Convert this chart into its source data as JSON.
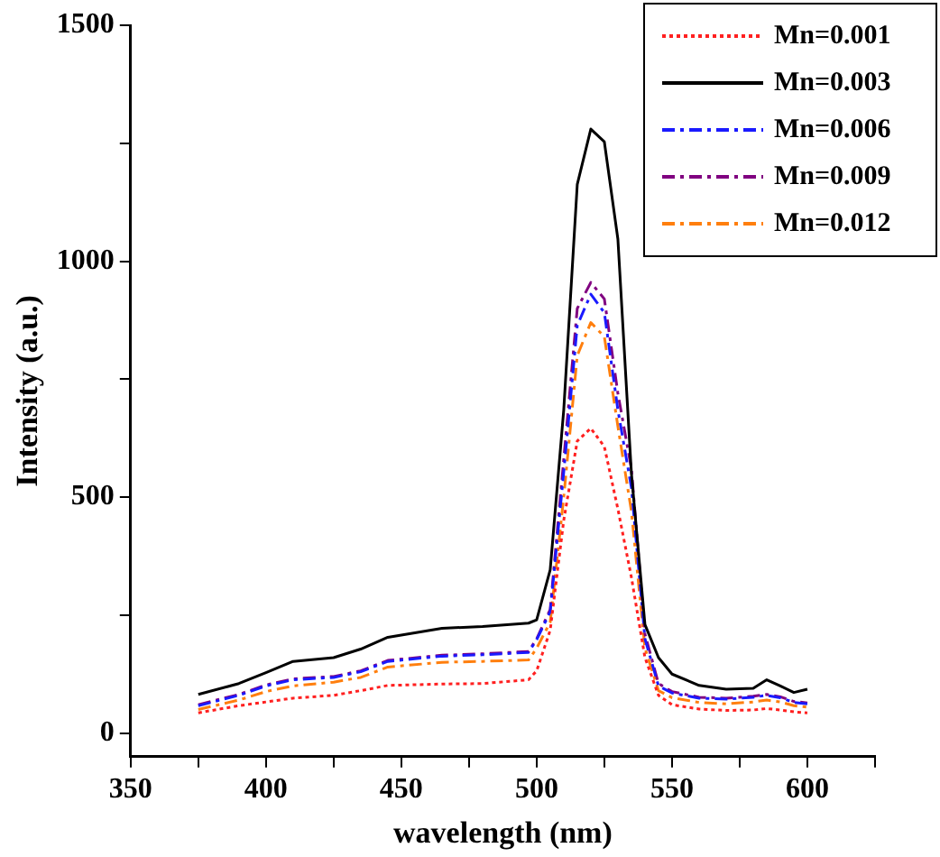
{
  "chart_data": {
    "type": "line",
    "xlabel": "wavelength (nm)",
    "ylabel": "Intensity (a.u.)",
    "x": [
      375,
      390,
      400,
      410,
      425,
      435,
      445,
      465,
      480,
      497,
      500,
      505,
      510,
      515,
      520,
      525,
      530,
      535,
      540,
      545,
      550,
      560,
      570,
      580,
      585,
      590,
      595,
      600
    ],
    "series": [
      {
        "name": "Mn=0.001",
        "color": "#ff2020",
        "line_style": "dotted",
        "values": [
          43,
          58,
          66,
          74,
          80,
          90,
          101,
          104,
          105,
          113,
          132,
          218,
          451,
          619,
          646,
          607,
          475,
          330,
          160,
          80,
          60,
          51,
          48,
          49,
          52,
          49,
          45,
          43
        ]
      },
      {
        "name": "Mn=0.003",
        "color": "#000000",
        "line_style": "solid",
        "values": [
          82,
          105,
          128,
          152,
          160,
          178,
          203,
          222,
          226,
          233,
          240,
          346,
          685,
          1163,
          1280,
          1253,
          1047,
          550,
          230,
          160,
          125,
          101,
          93,
          95,
          113,
          100,
          86,
          93
        ]
      },
      {
        "name": "Mn=0.006",
        "color": "#1a1aff",
        "line_style": "dashed",
        "values": [
          58,
          80,
          100,
          113,
          118,
          130,
          152,
          163,
          166,
          171,
          198,
          257,
          553,
          864,
          930,
          891,
          685,
          520,
          200,
          100,
          85,
          74,
          72,
          76,
          80,
          75,
          65,
          62
        ]
      },
      {
        "name": "Mn=0.009",
        "color": "#800080",
        "line_style": "dashed",
        "values": [
          60,
          82,
          102,
          115,
          120,
          132,
          154,
          165,
          168,
          173,
          200,
          262,
          580,
          900,
          955,
          920,
          720,
          560,
          210,
          105,
          88,
          76,
          74,
          78,
          82,
          77,
          67,
          64
        ]
      },
      {
        "name": "Mn=0.012",
        "color": "#ff7f0e",
        "line_style": "dashed",
        "values": [
          50,
          70,
          88,
          100,
          108,
          118,
          140,
          150,
          152,
          155,
          180,
          235,
          500,
          800,
          870,
          840,
          650,
          470,
          180,
          90,
          75,
          65,
          62,
          66,
          70,
          66,
          58,
          55
        ]
      }
    ],
    "xlim": [
      350,
      625
    ],
    "xticks": [
      350,
      {
        "value": 375,
        "label": null
      },
      400,
      {
        "value": 425,
        "label": null
      },
      450,
      {
        "value": 475,
        "label": null
      },
      500,
      {
        "value": 525,
        "label": null
      },
      550,
      {
        "value": 575,
        "label": null
      },
      600,
      {
        "value": 625,
        "label": null
      }
    ],
    "ylim": [
      -50,
      1500
    ],
    "yticks": [
      0,
      {
        "value": 250,
        "label": null
      },
      500,
      {
        "value": 750,
        "label": null
      },
      1000,
      {
        "value": 1250,
        "label": null
      },
      1500
    ],
    "legend": "top right",
    "marker": "none",
    "grid": false
  }
}
